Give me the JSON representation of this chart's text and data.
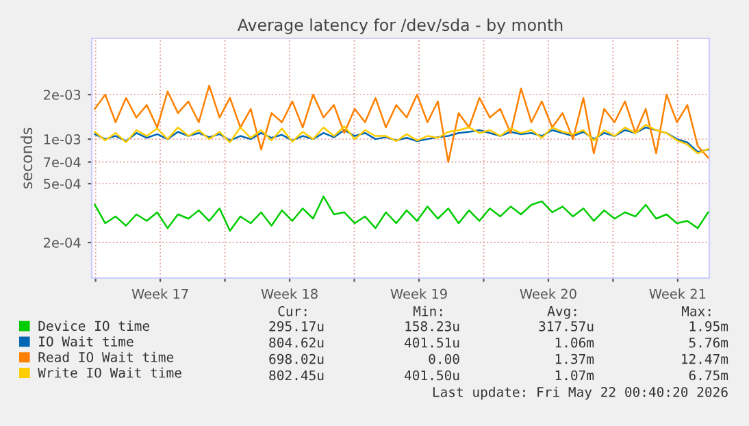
{
  "chart_data": {
    "type": "line",
    "title": "Average latency for /dev/sda - by month",
    "ylabel": "seconds",
    "x": [
      "2026-04-19T23:00",
      "2026-04-20T12:30",
      "2026-04-21T02:00",
      "2026-04-21T15:30",
      "2026-04-22T05:00",
      "2026-04-22T18:30",
      "2026-04-23T08:00",
      "2026-04-23T21:30",
      "2026-04-24T11:00",
      "2026-04-25T00:30",
      "2026-04-25T14:00",
      "2026-04-26T03:30",
      "2026-04-26T17:00",
      "2026-04-27T06:30",
      "2026-04-27T20:00",
      "2026-04-28T09:30",
      "2026-04-28T23:00",
      "2026-04-29T12:30",
      "2026-04-30T02:00",
      "2026-04-30T15:30",
      "2026-05-01T05:00",
      "2026-05-01T18:30",
      "2026-05-02T08:00",
      "2026-05-02T21:30",
      "2026-05-03T11:00",
      "2026-05-04T00:30",
      "2026-05-04T14:00",
      "2026-05-05T03:30",
      "2026-05-05T17:00",
      "2026-05-06T06:30",
      "2026-05-06T20:00",
      "2026-05-07T09:30",
      "2026-05-07T23:00",
      "2026-05-08T12:30",
      "2026-05-09T02:00",
      "2026-05-09T15:30",
      "2026-05-10T05:00",
      "2026-05-10T18:30",
      "2026-05-11T08:00",
      "2026-05-11T21:30",
      "2026-05-12T11:00",
      "2026-05-13T00:30",
      "2026-05-13T14:00",
      "2026-05-14T03:30",
      "2026-05-14T17:00",
      "2026-05-15T06:30",
      "2026-05-15T20:00",
      "2026-05-16T09:30",
      "2026-05-16T23:00",
      "2026-05-17T12:30",
      "2026-05-18T02:00",
      "2026-05-18T15:30",
      "2026-05-19T05:00",
      "2026-05-19T18:30",
      "2026-05-20T08:00",
      "2026-05-20T21:30",
      "2026-05-21T11:00",
      "2026-05-22T00:30",
      "2026-05-22T14:00",
      "2026-05-23T03:30"
    ],
    "series": [
      {
        "name": "Device IO time",
        "color": "#00cc00",
        "values": [
          0.00036,
          0.00027,
          0.0003,
          0.00026,
          0.00031,
          0.00028,
          0.00032,
          0.00025,
          0.00031,
          0.00029,
          0.00033,
          0.00028,
          0.00034,
          0.00024,
          0.0003,
          0.00027,
          0.00032,
          0.00026,
          0.00033,
          0.00028,
          0.00034,
          0.00029,
          0.00041,
          0.00031,
          0.00032,
          0.00027,
          0.0003,
          0.00025,
          0.00032,
          0.00027,
          0.00033,
          0.00028,
          0.00035,
          0.00029,
          0.00034,
          0.00027,
          0.00033,
          0.00028,
          0.00034,
          0.0003,
          0.00035,
          0.00031,
          0.00036,
          0.00038,
          0.00032,
          0.00035,
          0.0003,
          0.00034,
          0.00028,
          0.00033,
          0.00029,
          0.00032,
          0.0003,
          0.00036,
          0.00029,
          0.00031,
          0.00027,
          0.00028,
          0.00025,
          0.00032
        ]
      },
      {
        "name": "IO Wait time",
        "color": "#0066b3",
        "values": [
          0.00108,
          0.001,
          0.00105,
          0.00097,
          0.0011,
          0.00102,
          0.00108,
          0.001,
          0.00112,
          0.00105,
          0.0011,
          0.00103,
          0.00108,
          0.00098,
          0.00105,
          0.001,
          0.0011,
          0.00102,
          0.00107,
          0.00098,
          0.00105,
          0.001,
          0.0011,
          0.00103,
          0.00115,
          0.00105,
          0.0011,
          0.001,
          0.00103,
          0.00098,
          0.00102,
          0.00097,
          0.001,
          0.00103,
          0.00105,
          0.0011,
          0.00112,
          0.00115,
          0.0011,
          0.00105,
          0.00112,
          0.00108,
          0.0011,
          0.00105,
          0.00115,
          0.0011,
          0.00105,
          0.00112,
          0.001,
          0.0011,
          0.00105,
          0.00115,
          0.0011,
          0.0012,
          0.00115,
          0.0011,
          0.001,
          0.00095,
          0.00082,
          0.00085
        ]
      },
      {
        "name": "Read IO Wait time",
        "color": "#ff8000",
        "values": [
          0.0016,
          0.002,
          0.0013,
          0.0019,
          0.0014,
          0.0017,
          0.0012,
          0.0021,
          0.0015,
          0.0018,
          0.0013,
          0.0023,
          0.0014,
          0.0019,
          0.0012,
          0.0016,
          0.00085,
          0.0015,
          0.0013,
          0.0018,
          0.0012,
          0.002,
          0.0014,
          0.0017,
          0.0011,
          0.0016,
          0.0013,
          0.0019,
          0.0012,
          0.0017,
          0.0014,
          0.002,
          0.0013,
          0.0018,
          0.0007,
          0.0015,
          0.0012,
          0.0019,
          0.0014,
          0.0016,
          0.0011,
          0.0022,
          0.0013,
          0.0018,
          0.0012,
          0.0015,
          0.001,
          0.0019,
          0.0008,
          0.0016,
          0.0013,
          0.0018,
          0.0011,
          0.0016,
          0.0008,
          0.002,
          0.0013,
          0.0017,
          0.0009,
          0.00075
        ]
      },
      {
        "name": "Write IO Wait time",
        "color": "#ffcc00",
        "values": [
          0.00112,
          0.00098,
          0.0011,
          0.00095,
          0.00115,
          0.00105,
          0.00118,
          0.001,
          0.0012,
          0.00105,
          0.00115,
          0.001,
          0.00112,
          0.00095,
          0.0012,
          0.00102,
          0.00115,
          0.00098,
          0.00118,
          0.00096,
          0.00112,
          0.001,
          0.0012,
          0.00105,
          0.00122,
          0.001,
          0.00115,
          0.00105,
          0.00105,
          0.00097,
          0.00108,
          0.00098,
          0.00105,
          0.00102,
          0.00112,
          0.00115,
          0.0012,
          0.0011,
          0.00115,
          0.00105,
          0.00118,
          0.0011,
          0.00115,
          0.00102,
          0.0012,
          0.00112,
          0.00108,
          0.00115,
          0.00098,
          0.00115,
          0.00105,
          0.0012,
          0.0011,
          0.00125,
          0.00115,
          0.0011,
          0.00098,
          0.00092,
          0.0008,
          0.00086
        ]
      }
    ],
    "log": "y",
    "xlim": [
      "2026-04-19T19:00",
      "2026-05-23T05:00"
    ],
    "xticks": [
      {
        "value": "2026-04-20",
        "label": null
      },
      {
        "value": "2026-04-23T12:00",
        "label": "Week 17"
      },
      {
        "value": "2026-04-27",
        "label": null
      },
      {
        "value": "2026-04-30T12:00",
        "label": "Week 18"
      },
      {
        "value": "2026-05-04",
        "label": null
      },
      {
        "value": "2026-05-07T12:00",
        "label": "Week 19"
      },
      {
        "value": "2026-05-11",
        "label": null
      },
      {
        "value": "2026-05-14T12:00",
        "label": "Week 20"
      },
      {
        "value": "2026-05-18",
        "label": null
      },
      {
        "value": "2026-05-21T12:00",
        "label": "Week 21"
      }
    ],
    "ylim": [
      0.000115,
      0.0048
    ],
    "yticks": [
      {
        "value": 0.0002,
        "label": "2e-04"
      },
      {
        "value": 0.0005,
        "label": "5e-04"
      },
      {
        "value": 0.0007,
        "label": "7e-04"
      },
      {
        "value": 0.001,
        "label": "1e-03"
      },
      {
        "value": 0.002,
        "label": "2e-03"
      }
    ],
    "grid": true,
    "legend": "bottom",
    "annotations": [
      "Cur:",
      "Min:",
      "Avg:",
      "Max:",
      "295.17u",
      "158.23u",
      "317.57u",
      "1.95m",
      "804.62u",
      "401.51u",
      "1.06m",
      "5.76m",
      "698.02u",
      "0.00",
      "1.37m",
      "12.47m",
      "802.45u",
      "401.50u",
      "1.07m",
      "6.75m",
      "Last update: Fri May 22 00:40:20 2026"
    ]
  }
}
